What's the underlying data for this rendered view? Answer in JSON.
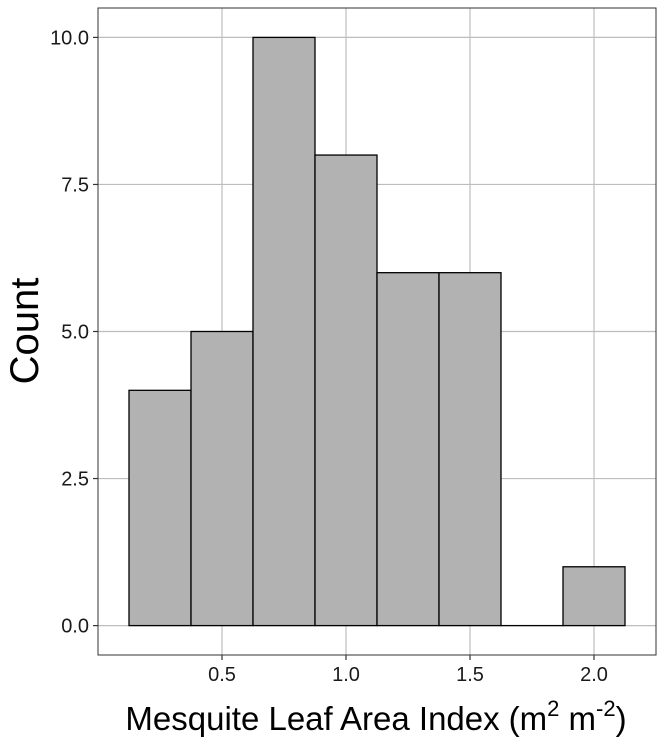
{
  "chart_data": {
    "type": "bar",
    "subtype": "histogram",
    "title": "",
    "xlabel": "Mesquite Leaf Area Index",
    "xlabel_unit": {
      "open": "(m",
      "exp1": "2",
      "mid": " m",
      "exp2": "-2",
      "close": ")"
    },
    "ylabel": "Count",
    "bins": [
      {
        "x0": 0.125,
        "x1": 0.375,
        "count": 4
      },
      {
        "x0": 0.375,
        "x1": 0.625,
        "count": 5
      },
      {
        "x0": 0.625,
        "x1": 0.875,
        "count": 10
      },
      {
        "x0": 0.875,
        "x1": 1.125,
        "count": 8
      },
      {
        "x0": 1.125,
        "x1": 1.375,
        "count": 6
      },
      {
        "x0": 1.375,
        "x1": 1.625,
        "count": 6
      },
      {
        "x0": 1.625,
        "x1": 1.875,
        "count": 0
      },
      {
        "x0": 1.875,
        "x1": 2.125,
        "count": 1
      }
    ],
    "xlim": [
      0.0,
      2.25
    ],
    "ylim": [
      -0.5,
      10.5
    ],
    "x_ticks": [
      0.5,
      1.0,
      1.5,
      2.0
    ],
    "x_tick_labels": [
      "0.5",
      "1.0",
      "1.5",
      "2.0"
    ],
    "y_ticks": [
      0.0,
      2.5,
      5.0,
      7.5,
      10.0
    ],
    "y_tick_labels": [
      "0.0",
      "2.5",
      "5.0",
      "7.5",
      "10.0"
    ],
    "grid": true,
    "bar_fill": "#b2b2b2",
    "bar_stroke": "#000000",
    "grid_color": "#bdbdbd",
    "panel_border_color": "#333333"
  }
}
